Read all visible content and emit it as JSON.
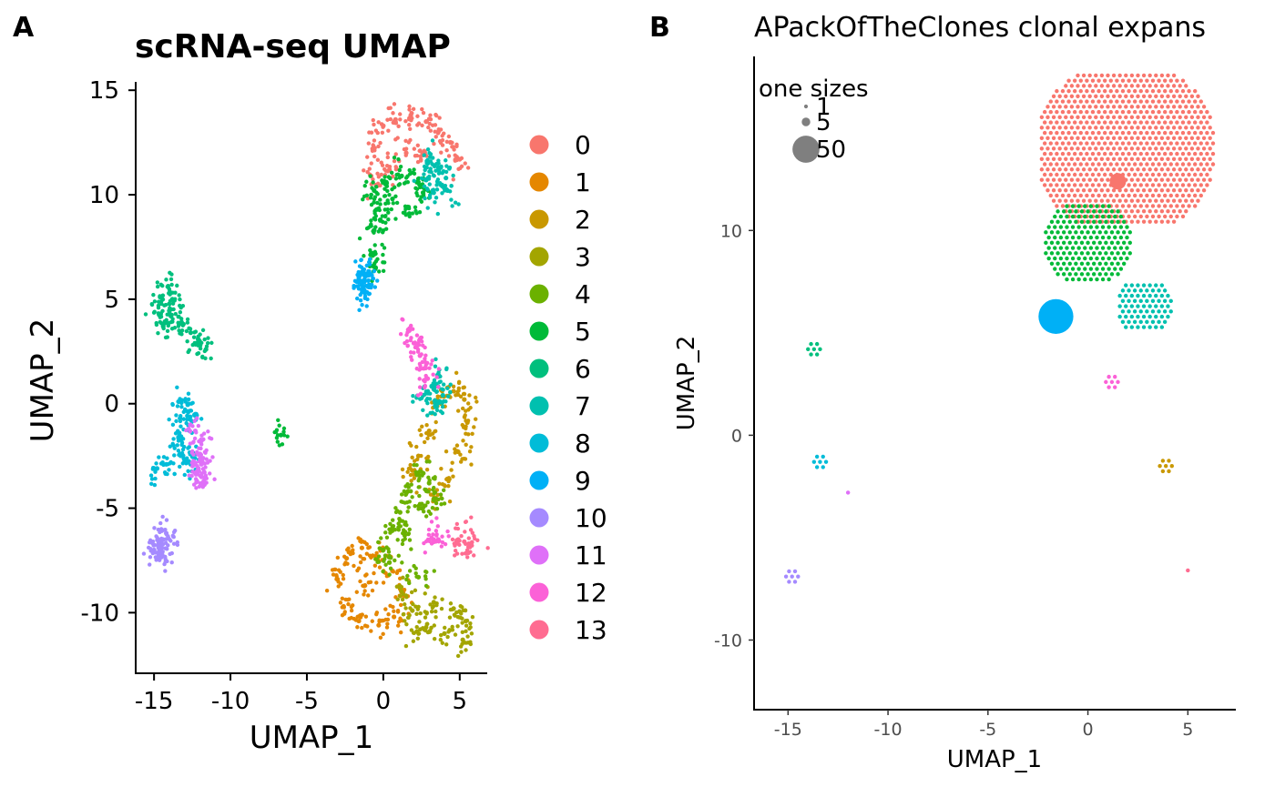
{
  "panels": {
    "a_tag": "A",
    "b_tag": "B"
  },
  "colors": {
    "clusters": [
      "#F8766D",
      "#E58700",
      "#C99800",
      "#A3A500",
      "#6BB100",
      "#00BA38",
      "#00BF7D",
      "#00C0AF",
      "#00BCD8",
      "#00B0F6",
      "#A58AFF",
      "#DF70F8",
      "#FB61D7",
      "#FF6C91"
    ],
    "size_legend": "#7f7f7f"
  },
  "chart_data": [
    {
      "type": "scatter",
      "title": "scRNA-seq UMAP",
      "xlabel": "UMAP_1",
      "ylabel": "UMAP_2",
      "xlim": [
        -16.2,
        6.8
      ],
      "ylim": [
        -12.9,
        15.4
      ],
      "xticks": [
        "-15",
        "-10",
        "-5",
        "0",
        "5"
      ],
      "yticks": [
        "15",
        "10",
        "5",
        "0",
        "-5",
        "-10"
      ],
      "grid": false,
      "legend_position": "right",
      "legend": [
        "0",
        "1",
        "2",
        "3",
        "4",
        "5",
        "6",
        "7",
        "8",
        "9",
        "10",
        "11",
        "12",
        "13"
      ],
      "series": [
        {
          "name": "0",
          "points": [
            [
              -0.7,
              12.2
            ],
            [
              0.0,
              13.3
            ],
            [
              0.8,
              13.6
            ],
            [
              1.8,
              13.8
            ],
            [
              2.8,
              13.5
            ],
            [
              3.6,
              13.0
            ],
            [
              4.4,
              12.5
            ],
            [
              5.0,
              11.7
            ],
            [
              1.5,
              12.0
            ],
            [
              0.4,
              11.2
            ],
            [
              2.6,
              11.9
            ],
            [
              -0.8,
              10.9
            ]
          ]
        },
        {
          "name": "1",
          "points": [
            [
              -3.0,
              -8.4
            ],
            [
              -2.4,
              -7.4
            ],
            [
              -1.4,
              -6.9
            ],
            [
              -0.5,
              -7.3
            ],
            [
              0.6,
              -8.0
            ],
            [
              1.2,
              -9.0
            ],
            [
              0.7,
              -10.2
            ],
            [
              -0.3,
              -10.6
            ],
            [
              -1.6,
              -10.4
            ],
            [
              -2.6,
              -9.7
            ],
            [
              -1.2,
              -8.7
            ]
          ]
        },
        {
          "name": "2",
          "points": [
            [
              2.3,
              -2.5
            ],
            [
              3.0,
              -1.3
            ],
            [
              3.8,
              0.0
            ],
            [
              4.6,
              0.6
            ],
            [
              5.3,
              0.2
            ],
            [
              5.5,
              -0.9
            ],
            [
              4.9,
              -2.3
            ],
            [
              4.2,
              -3.6
            ],
            [
              3.4,
              -4.5
            ],
            [
              1.9,
              -3.2
            ]
          ]
        },
        {
          "name": "3",
          "points": [
            [
              1.2,
              -9.0
            ],
            [
              1.9,
              -9.9
            ],
            [
              2.8,
              -10.7
            ],
            [
              4.0,
              -11.0
            ],
            [
              5.2,
              -11.3
            ],
            [
              5.4,
              -10.4
            ],
            [
              4.6,
              -9.8
            ],
            [
              3.3,
              -9.5
            ],
            [
              2.2,
              -10.9
            ]
          ]
        },
        {
          "name": "4",
          "points": [
            [
              0.0,
              -7.0
            ],
            [
              0.6,
              -6.0
            ],
            [
              1.1,
              -5.2
            ],
            [
              1.6,
              -4.2
            ],
            [
              2.2,
              -3.4
            ],
            [
              3.0,
              -3.8
            ],
            [
              2.5,
              -5.0
            ],
            [
              1.4,
              -6.3
            ],
            [
              0.4,
              -7.6
            ],
            [
              2.3,
              -8.3
            ],
            [
              3.3,
              -4.6
            ]
          ]
        },
        {
          "name": "5",
          "points": [
            [
              -0.6,
              10.2
            ],
            [
              0.2,
              10.6
            ],
            [
              1.2,
              10.9
            ],
            [
              2.2,
              10.6
            ],
            [
              -0.4,
              9.3
            ],
            [
              -0.6,
              8.3
            ],
            [
              -0.7,
              7.2
            ],
            [
              -0.5,
              6.5
            ],
            [
              -0.2,
              8.8
            ],
            [
              0.6,
              9.8
            ],
            [
              1.7,
              9.1
            ],
            [
              2.6,
              10.1
            ],
            [
              -6.7,
              -1.5
            ]
          ]
        },
        {
          "name": "6",
          "points": [
            [
              -14.6,
              5.1
            ],
            [
              -14.1,
              5.6
            ],
            [
              -13.8,
              5.0
            ],
            [
              -13.9,
              4.2
            ],
            [
              -14.4,
              3.7
            ],
            [
              -13.2,
              3.9
            ],
            [
              -12.6,
              3.4
            ],
            [
              -12.1,
              2.9
            ],
            [
              -11.6,
              2.6
            ],
            [
              -14.6,
              4.3
            ]
          ]
        },
        {
          "name": "7",
          "points": [
            [
              2.9,
              11.5
            ],
            [
              3.6,
              11.3
            ],
            [
              4.1,
              10.8
            ],
            [
              4.2,
              10.2
            ],
            [
              3.3,
              10.1
            ],
            [
              2.8,
              10.7
            ],
            [
              2.6,
              0.4
            ],
            [
              3.3,
              0.7
            ],
            [
              3.9,
              0.4
            ],
            [
              3.4,
              -0.1
            ],
            [
              3.6,
              1.3
            ]
          ]
        },
        {
          "name": "8",
          "points": [
            [
              -13.4,
              0.1
            ],
            [
              -13.3,
              -0.7
            ],
            [
              -13.4,
              -1.6
            ],
            [
              -13.3,
              -2.4
            ],
            [
              -14.2,
              -2.9
            ],
            [
              -14.8,
              -3.1
            ],
            [
              -12.6,
              -2.9
            ],
            [
              -12.3,
              -0.5
            ],
            [
              -12.8,
              0.0
            ],
            [
              -12.6,
              -2.4
            ]
          ]
        },
        {
          "name": "9",
          "points": [
            [
              -1.4,
              5.7
            ],
            [
              -1.2,
              6.1
            ],
            [
              -1.0,
              5.6
            ],
            [
              -1.2,
              5.3
            ],
            [
              -1.4,
              6.3
            ],
            [
              -1.2,
              5.9
            ]
          ]
        },
        {
          "name": "10",
          "points": [
            [
              -15.0,
              -7.0
            ],
            [
              -14.7,
              -6.7
            ],
            [
              -14.4,
              -6.5
            ],
            [
              -14.6,
              -7.3
            ],
            [
              -14.2,
              -6.2
            ],
            [
              -14.5,
              -6.9
            ]
          ]
        },
        {
          "name": "11",
          "points": [
            [
              -12.0,
              -1.8
            ],
            [
              -12.0,
              -2.4
            ],
            [
              -12.1,
              -3.1
            ],
            [
              -11.9,
              -3.5
            ],
            [
              -12.2,
              -3.7
            ],
            [
              -12.3,
              -1.3
            ],
            [
              -11.9,
              -2.9
            ]
          ]
        },
        {
          "name": "12",
          "points": [
            [
              1.7,
              3.5
            ],
            [
              2.0,
              2.9
            ],
            [
              2.4,
              2.3
            ],
            [
              2.7,
              1.7
            ],
            [
              2.9,
              1.2
            ],
            [
              3.3,
              -6.5
            ],
            [
              3.6,
              -6.5
            ]
          ]
        },
        {
          "name": "13",
          "points": [
            [
              5.3,
              -6.6
            ],
            [
              5.6,
              -6.7
            ],
            [
              4.9,
              -6.5
            ]
          ]
        }
      ]
    },
    {
      "type": "scatter",
      "title": "APackOfTheClones clonal expans",
      "xlabel": "UMAP_1",
      "ylabel": "UMAP_2",
      "xlim": [
        -16.7,
        7.4
      ],
      "ylim": [
        -13.4,
        18.5
      ],
      "xticks": [
        "-15",
        "-10",
        "-5",
        "0",
        "5"
      ],
      "yticks": [
        "10",
        "0",
        "-10"
      ],
      "grid": false,
      "size_legend_title": "one sizes",
      "size_legend": [
        {
          "label": "1",
          "size": 1
        },
        {
          "label": "5",
          "size": 5
        },
        {
          "label": "50",
          "size": 50
        }
      ],
      "clone_clusters": [
        {
          "cluster": "0",
          "x": 1.9,
          "y": 14.0,
          "r": 4.5
        },
        {
          "cluster": "5",
          "x": 0.0,
          "y": 9.4,
          "r": 2.2
        },
        {
          "cluster": "7",
          "x": 2.8,
          "y": 6.3,
          "r": 1.5
        },
        {
          "cluster": "9",
          "x": -1.3,
          "y": 5.7,
          "r": 0.35
        },
        {
          "cluster": "12",
          "x": 1.2,
          "y": 2.6,
          "r": 0.45
        },
        {
          "cluster": "6",
          "x": -13.7,
          "y": 4.2,
          "r": 0.35
        },
        {
          "cluster": "8",
          "x": -13.4,
          "y": -1.3,
          "r": 0.45
        },
        {
          "cluster": "2",
          "x": 3.9,
          "y": -1.5,
          "r": 0.45
        },
        {
          "cluster": "11",
          "x": -12.0,
          "y": -2.8,
          "r": 0.2
        },
        {
          "cluster": "10",
          "x": -14.8,
          "y": -6.9,
          "r": 0.4
        },
        {
          "cluster": "13",
          "x": 5.0,
          "y": -6.6,
          "r": 0.1
        }
      ],
      "large_clones": [
        {
          "cluster": "0",
          "x": 1.5,
          "y": 12.4,
          "size": 4
        },
        {
          "cluster": "9",
          "x": -1.6,
          "y": 5.8,
          "size": 50
        }
      ]
    }
  ]
}
